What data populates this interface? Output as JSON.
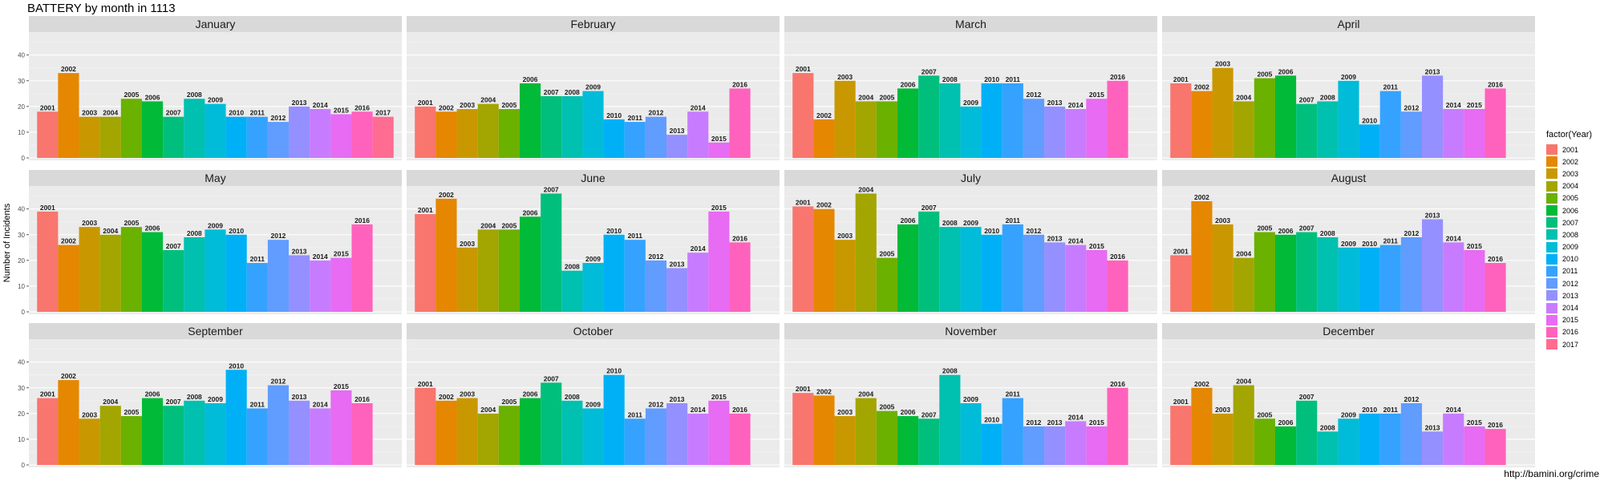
{
  "chart_data": {
    "type": "bar",
    "title": "BATTERY by month in 1113",
    "ylabel": "Number of Incidents",
    "xlabel": "",
    "ylim": [
      0,
      48
    ],
    "yticks": [
      0,
      10,
      20,
      30,
      40
    ],
    "grid": true,
    "legend_title": "factor(Year)",
    "legend_position": "right",
    "source": "http://bamini.org/crime",
    "years": [
      "2001",
      "2002",
      "2003",
      "2004",
      "2005",
      "2006",
      "2007",
      "2008",
      "2009",
      "2010",
      "2011",
      "2012",
      "2013",
      "2014",
      "2015",
      "2016",
      "2017"
    ],
    "colors": [
      "#F8766D",
      "#E58700",
      "#C99800",
      "#A3A500",
      "#6BB100",
      "#00BA38",
      "#00BF7D",
      "#00C0AF",
      "#00BCD8",
      "#00B0F6",
      "#35A2FF",
      "#619CFF",
      "#9590FF",
      "#C77CFF",
      "#E76BF3",
      "#FF62BC",
      "#FF6C91"
    ],
    "panels": [
      {
        "month": "January",
        "values": [
          18,
          33,
          16,
          16,
          23,
          22,
          16,
          23,
          21,
          16,
          16,
          14,
          20,
          19,
          17,
          18,
          16
        ]
      },
      {
        "month": "February",
        "values": [
          20,
          18,
          19,
          21,
          19,
          29,
          24,
          24,
          26,
          15,
          14,
          16,
          9,
          18,
          6,
          27,
          null
        ]
      },
      {
        "month": "March",
        "values": [
          33,
          15,
          30,
          22,
          22,
          27,
          32,
          29,
          20,
          29,
          29,
          23,
          20,
          19,
          23,
          30,
          null
        ]
      },
      {
        "month": "April",
        "values": [
          29,
          26,
          35,
          22,
          31,
          32,
          21,
          22,
          30,
          13,
          26,
          18,
          32,
          19,
          19,
          27,
          null
        ]
      },
      {
        "month": "May",
        "values": [
          39,
          26,
          33,
          30,
          33,
          31,
          24,
          29,
          32,
          30,
          19,
          28,
          22,
          20,
          21,
          34,
          null
        ]
      },
      {
        "month": "June",
        "values": [
          38,
          44,
          25,
          32,
          32,
          37,
          46,
          16,
          19,
          30,
          28,
          20,
          17,
          23,
          39,
          27,
          null
        ]
      },
      {
        "month": "July",
        "values": [
          41,
          40,
          28,
          46,
          21,
          34,
          39,
          33,
          33,
          30,
          34,
          30,
          27,
          26,
          24,
          20,
          null
        ]
      },
      {
        "month": "August",
        "values": [
          22,
          43,
          34,
          21,
          31,
          30,
          31,
          29,
          25,
          25,
          26,
          29,
          36,
          27,
          24,
          19,
          null
        ]
      },
      {
        "month": "September",
        "values": [
          26,
          33,
          18,
          23,
          19,
          26,
          23,
          25,
          24,
          37,
          22,
          31,
          25,
          22,
          29,
          24,
          null
        ]
      },
      {
        "month": "October",
        "values": [
          30,
          25,
          26,
          20,
          23,
          26,
          32,
          25,
          22,
          35,
          18,
          22,
          24,
          20,
          25,
          20,
          null
        ]
      },
      {
        "month": "November",
        "values": [
          28,
          27,
          19,
          26,
          21,
          19,
          18,
          35,
          24,
          16,
          26,
          15,
          15,
          17,
          15,
          30,
          null
        ]
      },
      {
        "month": "December",
        "values": [
          23,
          30,
          20,
          31,
          18,
          15,
          25,
          13,
          18,
          20,
          20,
          24,
          13,
          20,
          15,
          14,
          null
        ]
      }
    ]
  }
}
